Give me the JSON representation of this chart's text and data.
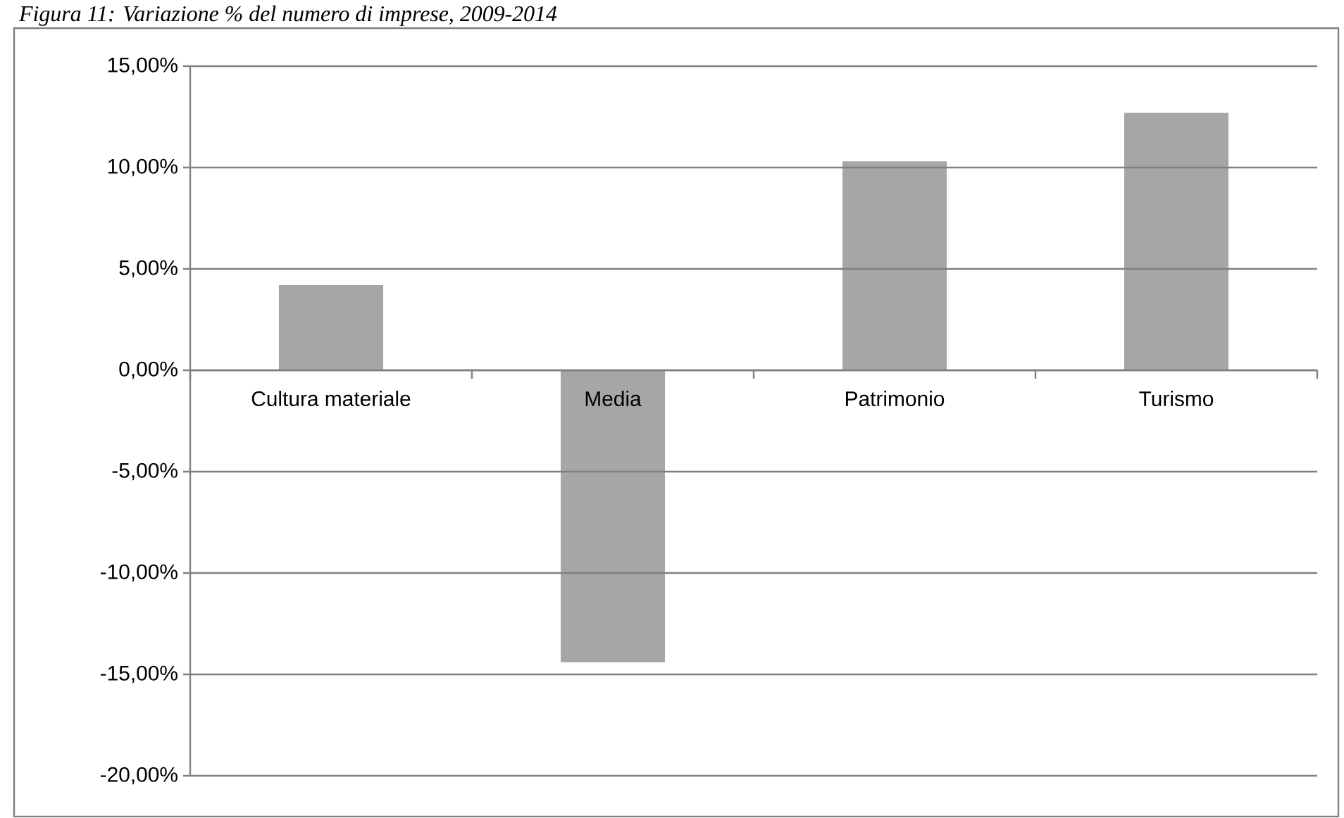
{
  "chart_data": {
    "type": "bar",
    "title": "Figura 11: Variazione % del numero di imprese, 2009-2014",
    "categories": [
      "Cultura materiale",
      "Media",
      "Patrimonio",
      "Turismo"
    ],
    "values": [
      4.2,
      -14.4,
      10.3,
      12.7
    ],
    "color": "#a6a6a6",
    "ylim": [
      -20,
      15
    ],
    "yticks": [
      {
        "value": -20,
        "label": "-20,00%"
      },
      {
        "value": -15,
        "label": "-15,00%"
      },
      {
        "value": -10,
        "label": "-10,00%"
      },
      {
        "value": -5,
        "label": "-5,00%"
      },
      {
        "value": 0,
        "label": "0,00%"
      },
      {
        "value": 5,
        "label": "5,00%"
      },
      {
        "value": 10,
        "label": "10,00%"
      },
      {
        "value": 15,
        "label": "15,00%"
      }
    ],
    "grid": "y"
  }
}
